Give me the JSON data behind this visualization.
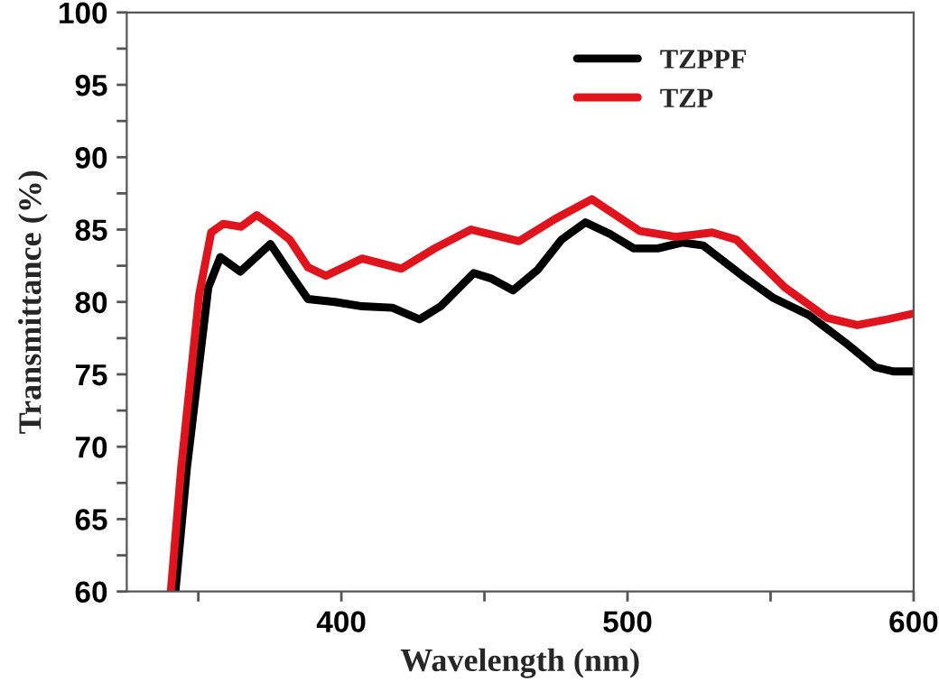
{
  "chart_data": {
    "type": "line",
    "xlabel": "Wavelength (nm)",
    "ylabel": "Transmittance (%)",
    "xlim": [
      325,
      600
    ],
    "ylim": [
      60,
      100
    ],
    "xticks": [
      {
        "value": 350,
        "label": null
      },
      400,
      {
        "value": 450,
        "label": null
      },
      500,
      {
        "value": 550,
        "label": null
      },
      600
    ],
    "yticks": [
      60,
      {
        "value": 62.5,
        "label": null
      },
      65,
      {
        "value": 67.5,
        "label": null
      },
      70,
      {
        "value": 72.5,
        "label": null
      },
      75,
      {
        "value": 77.5,
        "label": null
      },
      80,
      {
        "value": 82.5,
        "label": null
      },
      85,
      {
        "value": 87.5,
        "label": null
      },
      90,
      {
        "value": 92.5,
        "label": null
      },
      95,
      {
        "value": 97.5,
        "label": null
      },
      100
    ],
    "grid": false,
    "legend": "top right",
    "marker": "none",
    "line_style": "solid",
    "series": [
      {
        "name": "TZPPF",
        "color": "#000000",
        "x": [
          342,
          346,
          353.5,
          357.7,
          364.7,
          375.2,
          382,
          388.3,
          397.8,
          407.3,
          417.8,
          427.3,
          434.7,
          446.3,
          452.6,
          460,
          468.5,
          476.9,
          485.3,
          493.8,
          502.2,
          510.6,
          519.1,
          526.5,
          540.2,
          550.8,
          563.4,
          576.1,
          586.6,
          592.9,
          600
        ],
        "values": [
          60,
          68.5,
          81.0,
          83.1,
          82.1,
          84.0,
          82.0,
          80.2,
          80.0,
          79.7,
          79.6,
          78.8,
          79.7,
          82.0,
          81.6,
          80.8,
          82.2,
          84.3,
          85.5,
          84.7,
          83.7,
          83.7,
          84.1,
          83.9,
          81.8,
          80.3,
          79.1,
          77.2,
          75.5,
          75.2,
          75.2
        ]
      },
      {
        "name": "TZP",
        "color": "#e0141c",
        "x": [
          340.4,
          344,
          350.3,
          354.5,
          358.7,
          365,
          370.4,
          375.6,
          382,
          388.3,
          394.6,
          407.3,
          421,
          432.6,
          445.3,
          462.1,
          474.8,
          487.5,
          504.3,
          517,
          529.6,
          538.1,
          555,
          569.7,
          580.3,
          590.8,
          600
        ],
        "values": [
          60,
          68.5,
          80.5,
          84.8,
          85.4,
          85.2,
          86.0,
          85.3,
          84.3,
          82.4,
          81.8,
          83.0,
          82.3,
          83.7,
          85.0,
          84.2,
          85.75,
          87.1,
          84.9,
          84.5,
          84.8,
          84.3,
          81.0,
          78.9,
          78.4,
          78.8,
          79.2
        ]
      }
    ]
  }
}
